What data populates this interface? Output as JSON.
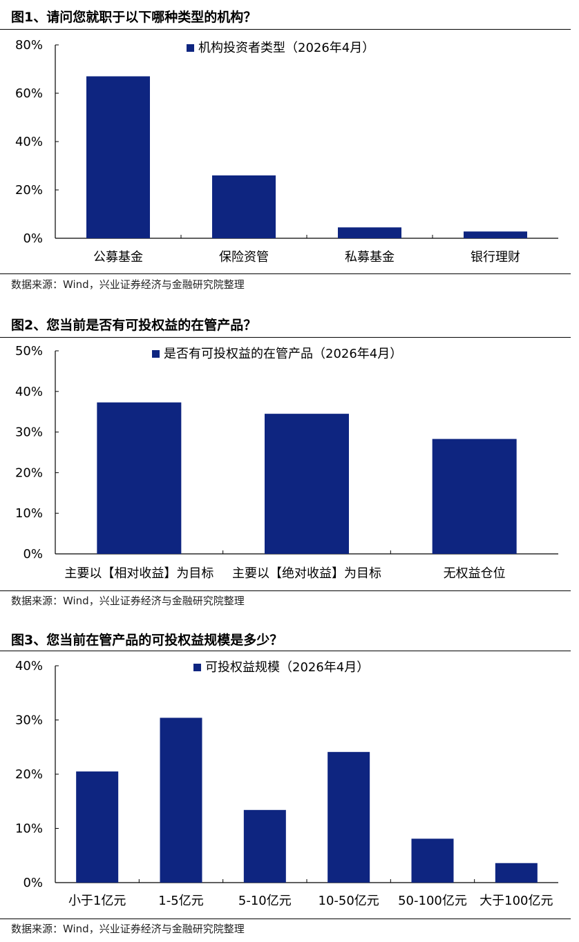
{
  "colors": {
    "bar": "#0e2580",
    "axis": "#000000"
  },
  "source_text": "数据来源：Wind，兴业证券经济与金融研究院整理",
  "figures": [
    {
      "title": "图1、请问您就职于以下哪种类型的机构？"
    },
    {
      "title": "图2、您当前是否有可投权益的在管产品？"
    },
    {
      "title": "图3、您当前在管产品的可投权益规模是多少？"
    }
  ],
  "chart_data": [
    {
      "type": "bar",
      "title": "图1、请问您就职于以下哪种类型的机构？",
      "categories": [
        "公募基金",
        "保险资管",
        "私募基金",
        "银行理财"
      ],
      "series": [
        {
          "name": "机构投资者类型（2026年4月）",
          "values": [
            67,
            26,
            4.5,
            2.8
          ]
        }
      ],
      "ylim": [
        0,
        80
      ],
      "yticks": [
        "0%",
        "20%",
        "40%",
        "60%",
        "80%"
      ],
      "ytick_values": [
        0,
        20,
        40,
        60,
        80
      ],
      "legend": "top-center",
      "grid": false
    },
    {
      "type": "bar",
      "title": "图2、您当前是否有可投权益的在管产品？",
      "categories": [
        "主要以【相对收益】为目标",
        "主要以【绝对收益】为目标",
        "无权益仓位"
      ],
      "series": [
        {
          "name": "是否有可投权益的在管产品（2026年4月）",
          "values": [
            37.3,
            34.5,
            28.3
          ]
        }
      ],
      "ylim": [
        0,
        50
      ],
      "yticks": [
        "0%",
        "10%",
        "20%",
        "30%",
        "40%",
        "50%"
      ],
      "ytick_values": [
        0,
        10,
        20,
        30,
        40,
        50
      ],
      "legend": "top-center",
      "grid": false
    },
    {
      "type": "bar",
      "title": "图3、您当前在管产品的可投权益规模是多少？",
      "categories": [
        "小于1亿元",
        "1-5亿元",
        "5-10亿元",
        "10-50亿元",
        "50-100亿元",
        "大于100亿元"
      ],
      "series": [
        {
          "name": "可投权益规模（2026年4月）",
          "values": [
            20.5,
            30.4,
            13.4,
            24.1,
            8.1,
            3.6
          ]
        }
      ],
      "ylim": [
        0,
        40
      ],
      "yticks": [
        "0%",
        "10%",
        "20%",
        "30%",
        "40%"
      ],
      "ytick_values": [
        0,
        10,
        20,
        30,
        40
      ],
      "legend": "top-center",
      "grid": false
    }
  ]
}
